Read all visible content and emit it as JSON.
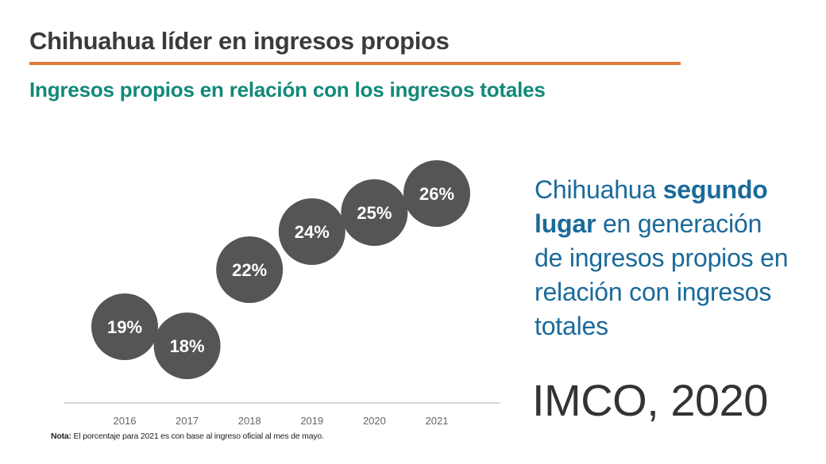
{
  "header": {
    "title": "Chihuahua líder en ingresos propios",
    "subtitle": "Ingresos propios en relación con los ingresos totales"
  },
  "colors": {
    "accent_rule": "#e07b39",
    "subtitle": "#12897a",
    "bubble": "#555555",
    "callout": "#1a6a9a"
  },
  "chart_data": {
    "type": "scatter",
    "title": "Ingresos propios en relación con los ingresos totales",
    "xlabel": "",
    "ylabel": "",
    "categories": [
      "2016",
      "2017",
      "2018",
      "2019",
      "2020",
      "2021"
    ],
    "values": [
      19,
      18,
      22,
      24,
      25,
      26
    ],
    "labels": [
      "19%",
      "18%",
      "22%",
      "24%",
      "25%",
      "26%"
    ],
    "unit": "%",
    "grid": false,
    "legend": "none"
  },
  "note": {
    "label": "Nota:",
    "text": " El porcentaje para 2021 es con base al ingreso oficial al mes de mayo."
  },
  "callout": {
    "lines": [
      {
        "normal_before": "Chihuahua ",
        "bold": "segundo",
        "normal_after": ""
      },
      {
        "normal_before": "",
        "bold": "lugar",
        "normal_after": " en generación"
      },
      {
        "normal_before": "de ingresos propios en",
        "bold": "",
        "normal_after": ""
      },
      {
        "normal_before": "relación con ingresos",
        "bold": "",
        "normal_after": ""
      },
      {
        "normal_before": "totales",
        "bold": "",
        "normal_after": ""
      }
    ]
  },
  "source": "IMCO, 2020"
}
